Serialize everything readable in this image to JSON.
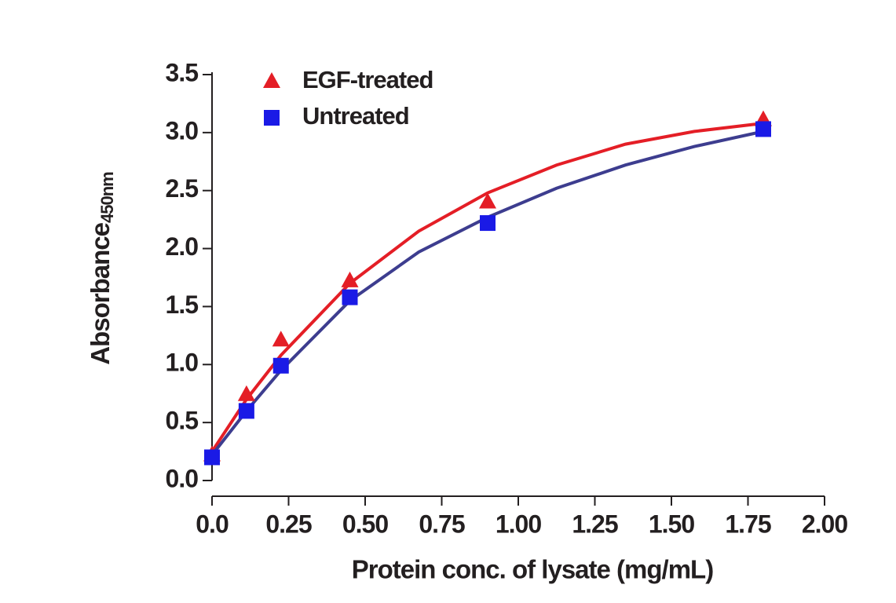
{
  "chart_data": {
    "type": "scatter",
    "x_label": "Protein conc. of lysate (mg/mL)",
    "y_label": "Absorbance",
    "y_label_sub": "450nm",
    "x": [
      0,
      0.1125,
      0.225,
      0.45,
      0.9,
      1.8
    ],
    "series": [
      {
        "name": "EGF-treated",
        "color": "#e41e26",
        "marker": "triangle",
        "values": [
          0.22,
          0.74,
          1.21,
          1.72,
          2.4,
          3.11
        ]
      },
      {
        "name": "Untreated",
        "color": "#1a1ae6",
        "marker": "square",
        "values": [
          0.2,
          0.6,
          0.99,
          1.58,
          2.22,
          3.03
        ]
      }
    ],
    "fit_x": [
      0,
      0.1125,
      0.225,
      0.45,
      0.675,
      0.9,
      1.125,
      1.35,
      1.575,
      1.8
    ],
    "fits": [
      {
        "color": "#e41e26",
        "values": [
          0.25,
          0.7,
          1.08,
          1.7,
          2.15,
          2.48,
          2.72,
          2.9,
          3.01,
          3.08
        ]
      },
      {
        "color": "#3d3d8f",
        "values": [
          0.22,
          0.6,
          0.95,
          1.55,
          1.97,
          2.27,
          2.52,
          2.72,
          2.88,
          3.01
        ]
      }
    ],
    "xlim": [
      0,
      2
    ],
    "ylim": [
      0,
      3.5
    ],
    "xticks": [
      {
        "value": 0,
        "label": "0.0"
      },
      0.25,
      {
        "value": 0.5,
        "label": "0.50"
      },
      0.75,
      {
        "value": 1,
        "label": "1.00"
      },
      1.25,
      {
        "value": 1.5,
        "label": "1.50"
      },
      1.75,
      {
        "value": 2,
        "label": "2.00"
      }
    ],
    "yticks": [
      {
        "value": 0,
        "label": "0.0"
      },
      0.5,
      {
        "value": 1,
        "label": "1.0"
      },
      1.5,
      {
        "value": 2,
        "label": "2.0"
      },
      2.5,
      {
        "value": 3,
        "label": "3.0"
      },
      3.5
    ],
    "grid": false,
    "legend": "top-left"
  }
}
